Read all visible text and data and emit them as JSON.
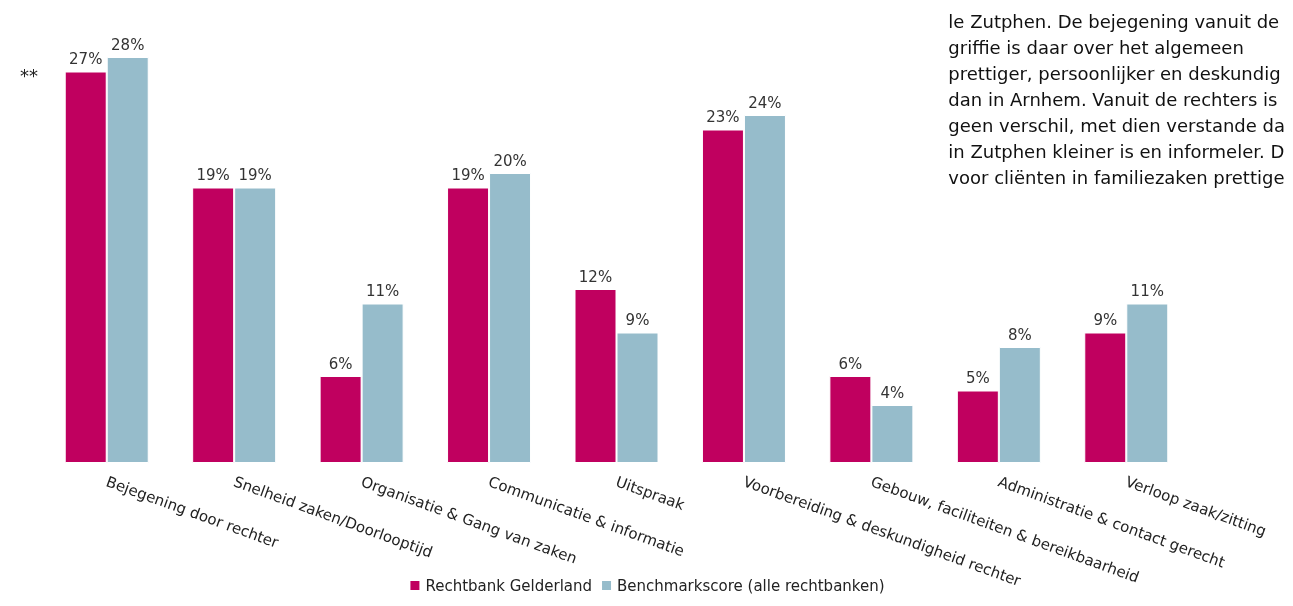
{
  "chart_data": {
    "type": "bar",
    "categories": [
      "Bejegening door rechter",
      "Snelheid zaken/Doorlooptijd",
      "Organisatie & Gang van zaken",
      "Communicatie & informatie",
      "Uitspraak",
      "Voorbereiding & deskundigheid rechter",
      "Gebouw, faciliteiten & bereikbaarheid",
      "Administratie & contact gerecht",
      "Verloop zaak/zitting"
    ],
    "series": [
      {
        "name": "Rechtbank Gelderland",
        "color": "#c0005f",
        "values": [
          27,
          19,
          6,
          19,
          12,
          23,
          6,
          5,
          9
        ],
        "value_labels": [
          "27%",
          "19%",
          "6%",
          "19%",
          "12%",
          "23%",
          "6%",
          "5%",
          "9%"
        ]
      },
      {
        "name": "Benchmarkscore (alle rechtbanken)",
        "color": "#96bccb",
        "values": [
          28,
          19,
          11,
          20,
          9,
          24,
          4,
          8,
          11
        ],
        "value_labels": [
          "28%",
          "19%",
          "11%",
          "20%",
          "9%",
          "24%",
          "4%",
          "8%",
          "11%"
        ]
      }
    ],
    "legend": "bottom",
    "grid": false,
    "annotations": [
      "**",
      "le Zutphen. De bejegening vanuit de\ngriffie is daar over het algemeen\nprettiger, persoonlijker en deskundig\ndan in Arnhem. Vanuit de rechters is\ngeen verschil, met dien verstande da\nin Zutphen kleiner is en informeler. D\nvoor cliënten in familiezaken prettige"
    ]
  }
}
